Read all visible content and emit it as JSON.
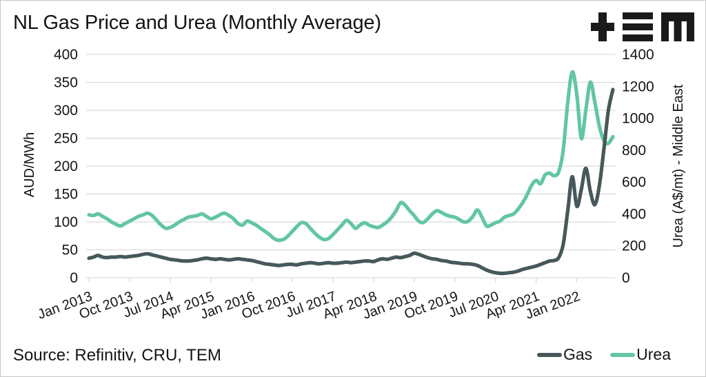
{
  "title": "NL Gas Price and Urea (Monthly Average)",
  "source": "Source: Refinitiv, CRU, TEM",
  "logo": {
    "icon": "tem-logo",
    "color": "#1a1a1a"
  },
  "colors": {
    "gas": "#47585a",
    "urea": "#62c6a2",
    "grid": "#dadada",
    "text": "#141414",
    "background": "#ffffff"
  },
  "legend": [
    {
      "label": "Gas",
      "color": "#47585a"
    },
    {
      "label": "Urea",
      "color": "#62c6a2"
    }
  ],
  "chart_data": {
    "type": "line",
    "title": "NL Gas Price and Urea (Monthly Average)",
    "frequency": "monthly",
    "x_range": [
      "Jan 2013",
      "Sep 2022"
    ],
    "x_tick_labels": [
      "Jan 2013",
      "Oct 2013",
      "Jul 2014",
      "Apr 2015",
      "Jan 2016",
      "Oct 2016",
      "Jul 2017",
      "Apr 2018",
      "Jan 2019",
      "Oct 2019",
      "Jul 2020",
      "Apr 2021",
      "Jan 2022"
    ],
    "x_tick_every": 9,
    "grid": "horizontal",
    "legend_position": "bottom-right",
    "left_axis": {
      "label": "AUD/MWh",
      "min": 0,
      "max": 400,
      "tick_step": 50
    },
    "right_axis": {
      "label": "Urea (A$/mt) - Middle East",
      "min": 0,
      "max": 1400,
      "tick_step": 200
    },
    "series": [
      {
        "name": "Urea",
        "axis": "right",
        "color": "#62c6a2",
        "unit": "A$/mt",
        "values": [
          395,
          390,
          400,
          385,
          370,
          350,
          335,
          325,
          340,
          355,
          370,
          385,
          395,
          405,
          390,
          360,
          330,
          310,
          315,
          330,
          350,
          365,
          380,
          385,
          390,
          400,
          385,
          370,
          380,
          395,
          405,
          390,
          370,
          340,
          330,
          355,
          345,
          330,
          310,
          290,
          270,
          245,
          235,
          240,
          260,
          290,
          320,
          345,
          340,
          310,
          280,
          255,
          240,
          245,
          270,
          300,
          330,
          360,
          340,
          310,
          330,
          345,
          330,
          320,
          315,
          330,
          350,
          380,
          420,
          470,
          455,
          420,
          390,
          355,
          346,
          370,
          400,
          420,
          410,
          395,
          385,
          380,
          365,
          350,
          355,
          385,
          425,
          380,
          325,
          330,
          345,
          355,
          380,
          390,
          400,
          430,
          470,
          520,
          580,
          610,
          590,
          645,
          655,
          640,
          665,
          800,
          1100,
          1290,
          1150,
          873,
          1050,
          1226,
          1100,
          950,
          860,
          843,
          885
        ]
      },
      {
        "name": "Gas",
        "axis": "left",
        "color": "#47585a",
        "unit": "AUD/MWh",
        "values": [
          35,
          37,
          40,
          37,
          36,
          37,
          37,
          38,
          37,
          38,
          39,
          40,
          42,
          43,
          41,
          39,
          37,
          35,
          33,
          32,
          31,
          30,
          30,
          31,
          32,
          34,
          35,
          34,
          33,
          34,
          33,
          32,
          33,
          34,
          33,
          32,
          31,
          29,
          27,
          25,
          24,
          23,
          22,
          23,
          24,
          24,
          23,
          25,
          26,
          27,
          26,
          25,
          26,
          27,
          26,
          26,
          27,
          28,
          27,
          28,
          29,
          30,
          30,
          29,
          32,
          34,
          33,
          35,
          37,
          36,
          38,
          40,
          44,
          42,
          39,
          36,
          34,
          33,
          31,
          30,
          28,
          27,
          26,
          25,
          25,
          24,
          22,
          18,
          14,
          11,
          9,
          8,
          8,
          9,
          10,
          12,
          15,
          17,
          19,
          21,
          24,
          27,
          30,
          31,
          36,
          60,
          120,
          181,
          128,
          158,
          196,
          155,
          131,
          165,
          230,
          300,
          337
        ]
      }
    ]
  }
}
